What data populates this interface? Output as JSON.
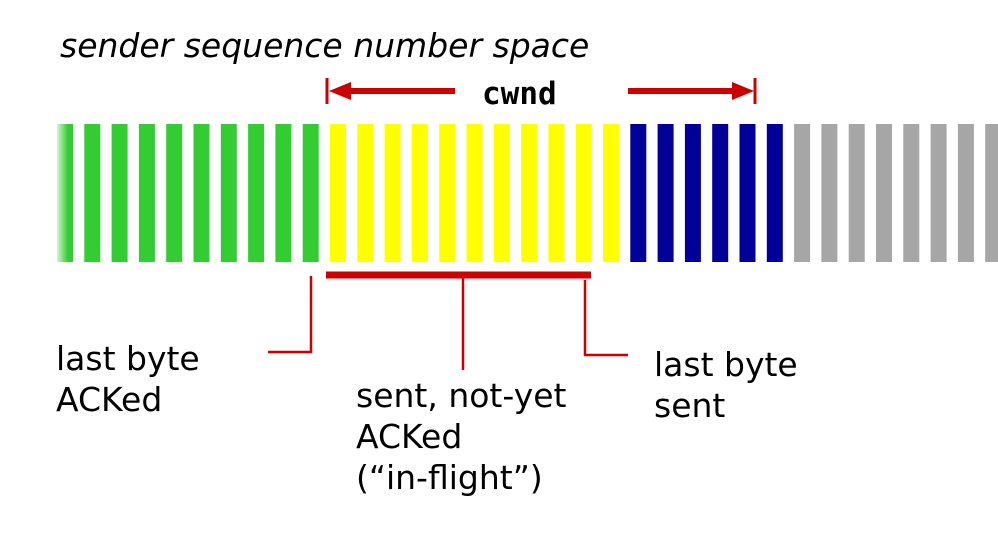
{
  "title": "sender sequence number space",
  "window_label": "cwnd",
  "labels": {
    "last_byte_acked": "last byte\nACKed",
    "in_flight": "sent, not-yet\nACKed\n(“in-flight”)",
    "last_byte_sent": "last byte\nsent"
  },
  "segments": [
    {
      "state": "acked",
      "count": 10,
      "color": "#33cc33"
    },
    {
      "state": "in-flight",
      "count": 11,
      "color": "#ffff00"
    },
    {
      "state": "usable-not-sent",
      "count": 6,
      "color": "#000099"
    },
    {
      "state": "not-usable",
      "count": 8,
      "color": "#a6a6a6"
    }
  ],
  "annotation_color": "#cc0000"
}
